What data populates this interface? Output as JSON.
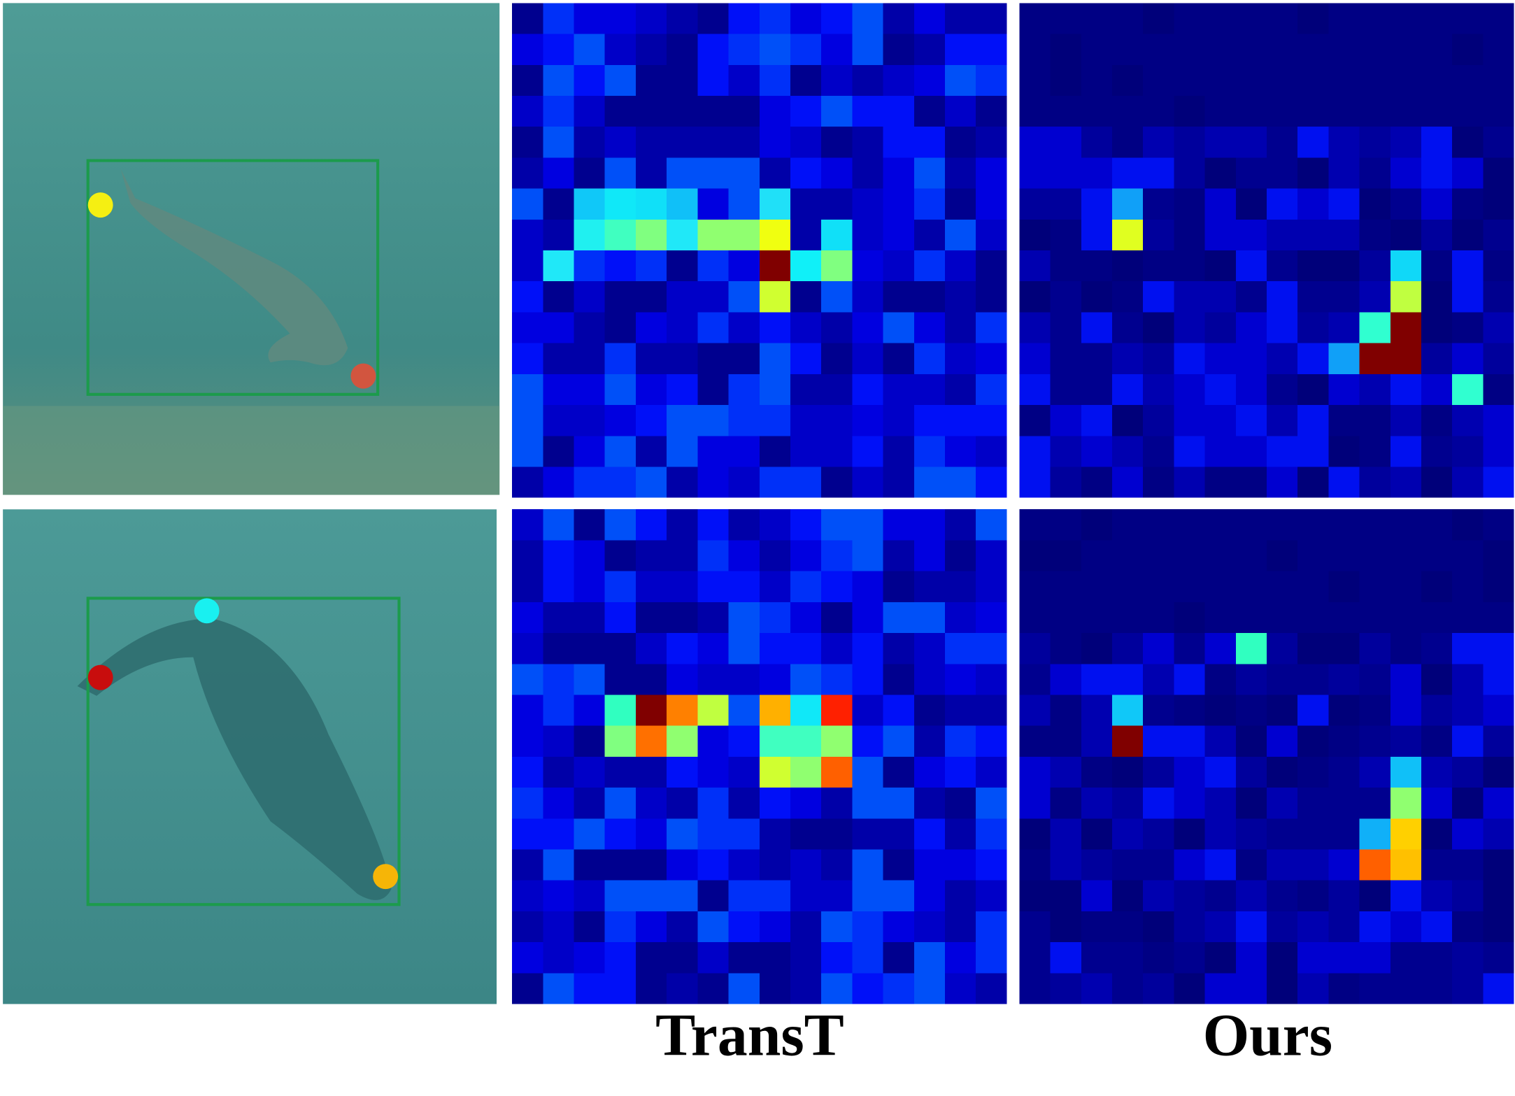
{
  "figure": {
    "column_labels": [
      "TransT",
      "Ours"
    ]
  }
}
